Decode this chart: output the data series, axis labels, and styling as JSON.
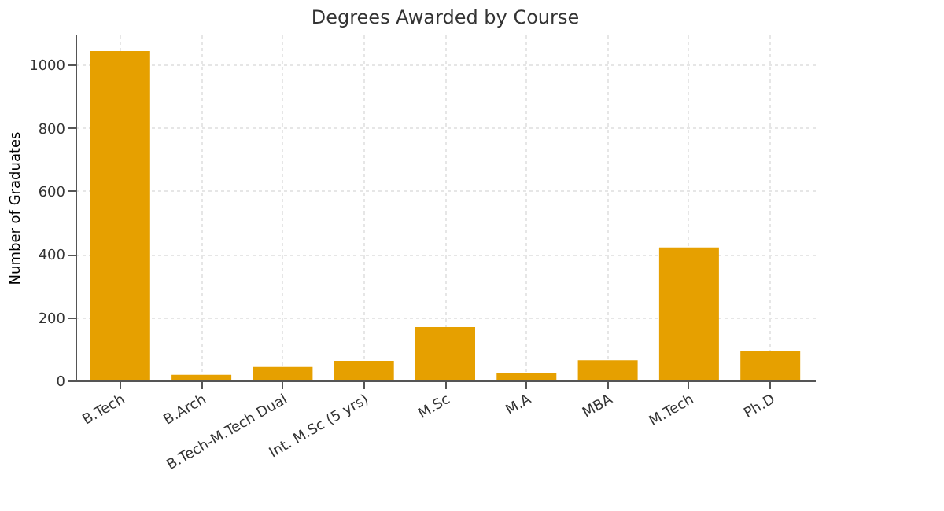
{
  "chart_data": {
    "type": "bar",
    "title": "Degrees Awarded by Course",
    "ylabel": "Number of Graduates",
    "categories": [
      "B.Tech",
      "B.Arch",
      "B.Tech-M.Tech Dual",
      "Int. M.Sc (5 yrs)",
      "M.Sc",
      "M.A",
      "MBA",
      "M.Tech",
      "Ph.D"
    ],
    "values": [
      1043,
      18,
      43,
      62,
      169,
      25,
      64,
      421,
      92
    ],
    "color": "#e6a000",
    "ylim": [
      0,
      1095
    ],
    "yticks": [
      0,
      200,
      400,
      600,
      800,
      1000
    ],
    "grid": true
  }
}
